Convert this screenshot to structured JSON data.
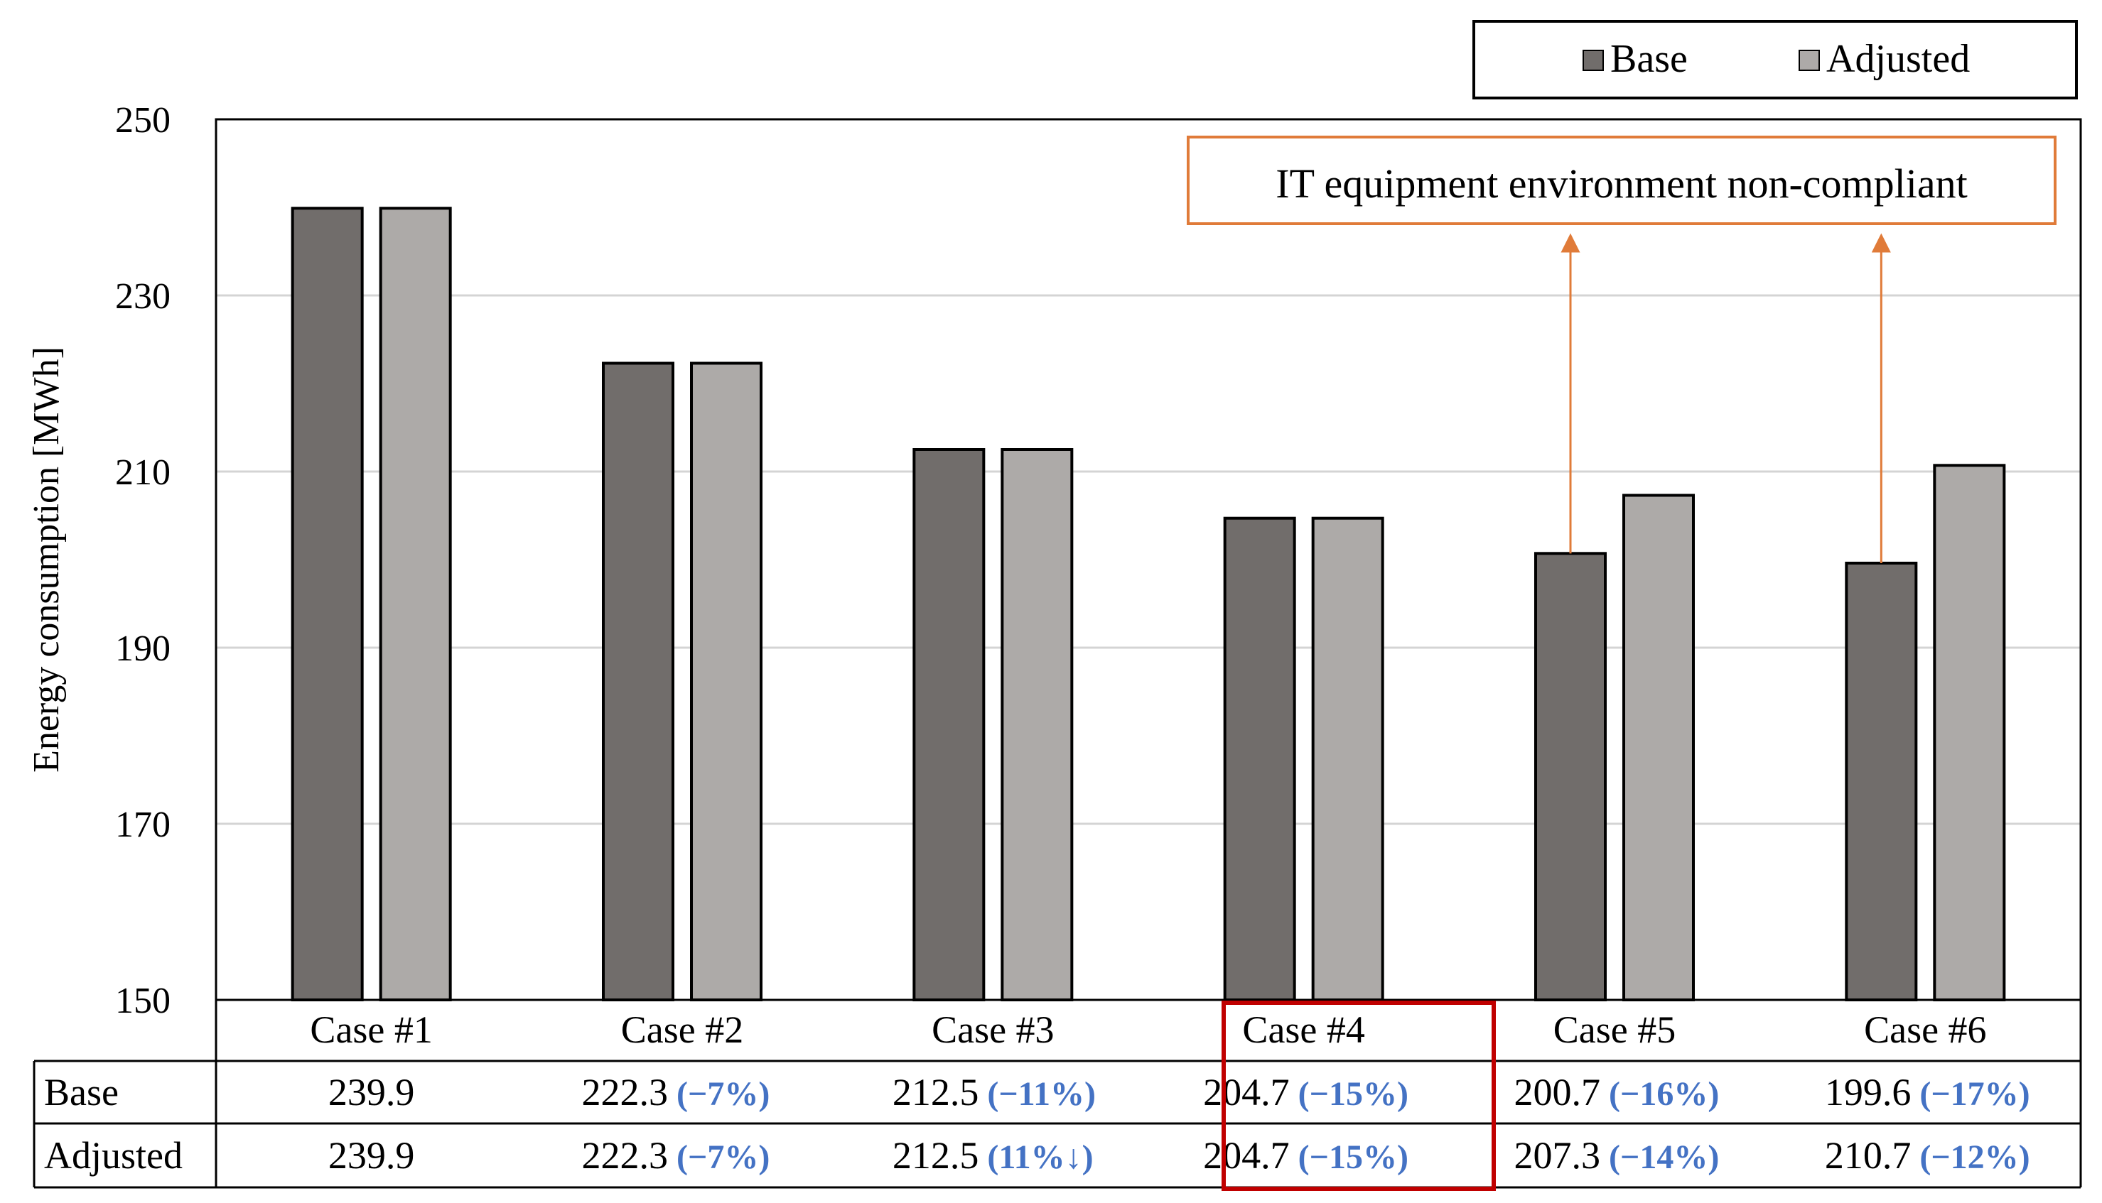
{
  "chart_data": {
    "type": "bar",
    "title": "",
    "xlabel": "",
    "ylabel": "Energy consumption [MWh]",
    "ylim": [
      150,
      250
    ],
    "yticks": [
      150,
      170,
      190,
      210,
      230,
      250
    ],
    "grid": true,
    "legend_position": "top-right",
    "categories": [
      "Case #1",
      "Case #2",
      "Case #3",
      "Case #4",
      "Case #5",
      "Case #6"
    ],
    "series": [
      {
        "name": "Base",
        "color": "#716d6b",
        "values": [
          239.9,
          222.3,
          212.5,
          204.7,
          200.7,
          199.6
        ],
        "labels": [
          "239.9",
          "222.3",
          "212.5",
          "204.7",
          "200.7",
          "199.6"
        ],
        "changes": [
          "",
          "(−7%)",
          "(−11%)",
          "(−15%)",
          "(−16%)",
          "(−17%)"
        ]
      },
      {
        "name": "Adjusted",
        "color": "#adaaa8",
        "values": [
          239.9,
          222.3,
          212.5,
          204.7,
          207.3,
          210.7
        ],
        "labels": [
          "239.9",
          "222.3",
          "212.5",
          "204.7",
          "207.3",
          "210.7"
        ],
        "changes": [
          "",
          "(−7%)",
          "(11%↓)",
          "(−15%)",
          "(−14%)",
          "(−12%)"
        ]
      }
    ],
    "annotation": {
      "text": "IT equipment environment non-compliant",
      "targets": [
        "Case #5",
        "Case #6"
      ],
      "color": "#e07b39"
    },
    "highlight": {
      "category": "Case #4",
      "color": "#c00000"
    },
    "change_color": "#4472c4"
  }
}
